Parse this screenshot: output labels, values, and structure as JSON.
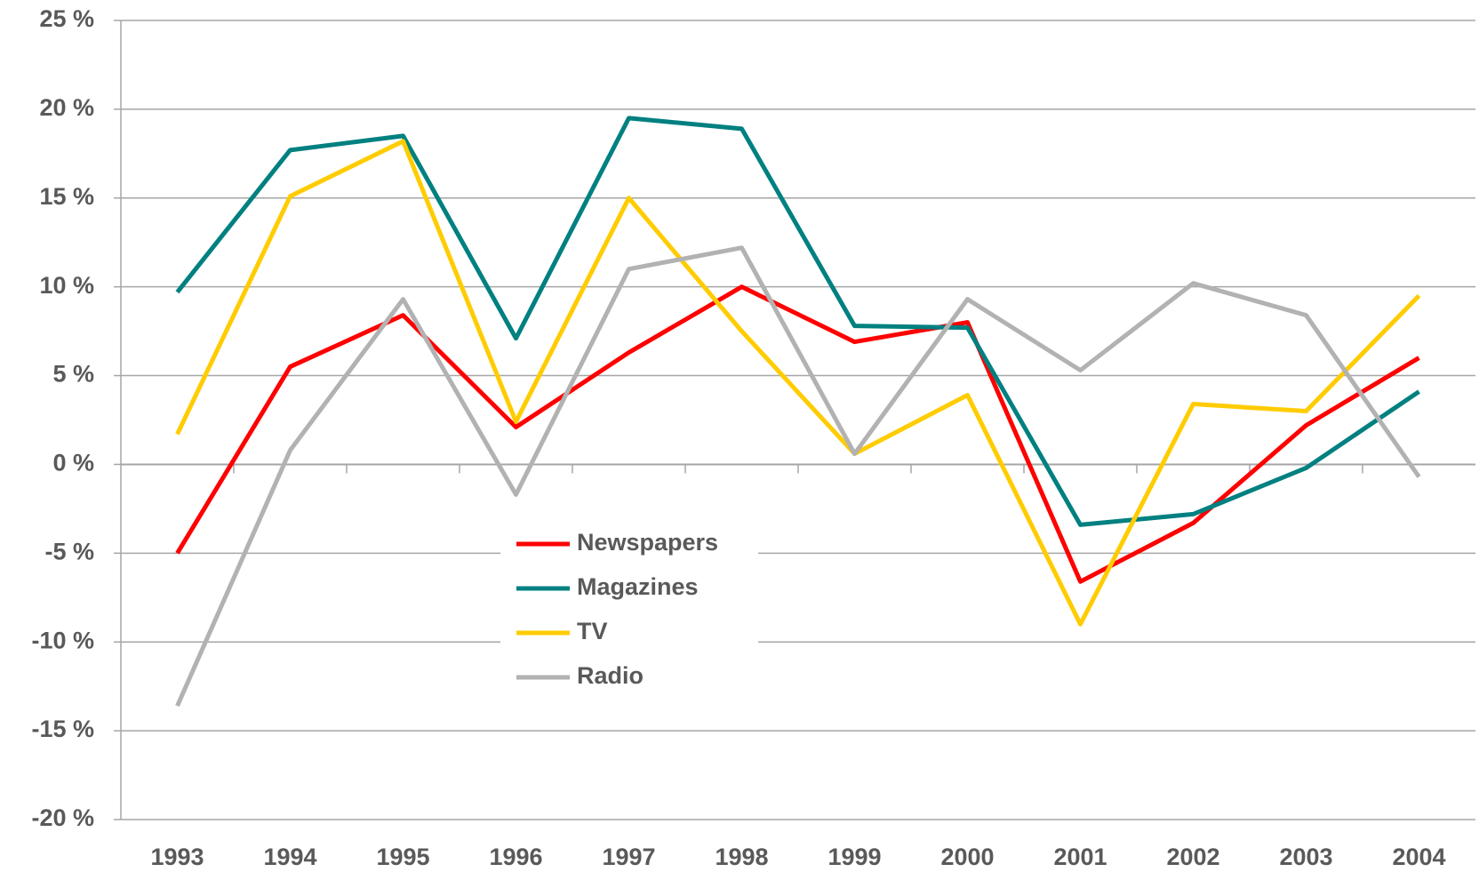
{
  "chart_data": {
    "type": "line",
    "categories": [
      "1993",
      "1994",
      "1995",
      "1996",
      "1997",
      "1998",
      "1999",
      "2000",
      "2001",
      "2002",
      "2003",
      "2004"
    ],
    "series": [
      {
        "name": "Newspapers",
        "color": "#ff0000",
        "values": [
          -5,
          5.5,
          8.4,
          2.1,
          6.3,
          10.0,
          6.9,
          8.0,
          -6.6,
          -3.3,
          2.2,
          6.0
        ]
      },
      {
        "name": "Magazines",
        "color": "#008080",
        "values": [
          9.7,
          17.7,
          18.5,
          7.1,
          19.5,
          18.9,
          7.8,
          7.7,
          -3.4,
          -2.8,
          -0.2,
          4.1
        ]
      },
      {
        "name": "TV",
        "color": "#ffcc00",
        "values": [
          1.7,
          15.1,
          18.2,
          2.4,
          15.0,
          7.5,
          0.6,
          3.9,
          -9.0,
          3.4,
          3.0,
          9.5
        ]
      },
      {
        "name": "Radio",
        "color": "#b2b2b2",
        "values": [
          -13.6,
          0.8,
          9.3,
          -1.7,
          11.0,
          12.2,
          0.6,
          9.3,
          5.3,
          10.2,
          8.4,
          -0.7
        ]
      }
    ],
    "ylim": [
      -20,
      25
    ],
    "yticks": [
      {
        "value": -20,
        "label": "-20 %"
      },
      {
        "value": -15,
        "label": "-15 %"
      },
      {
        "value": -10,
        "label": "-10 %"
      },
      {
        "value": -5,
        "label": "-5 %"
      },
      {
        "value": 0,
        "label": "0 %"
      },
      {
        "value": 5,
        "label": "5 %"
      },
      {
        "value": 10,
        "label": "10 %"
      },
      {
        "value": 15,
        "label": "15 %"
      },
      {
        "value": 20,
        "label": "20 %"
      },
      {
        "value": 25,
        "label": "25 %"
      }
    ],
    "grid": true
  }
}
